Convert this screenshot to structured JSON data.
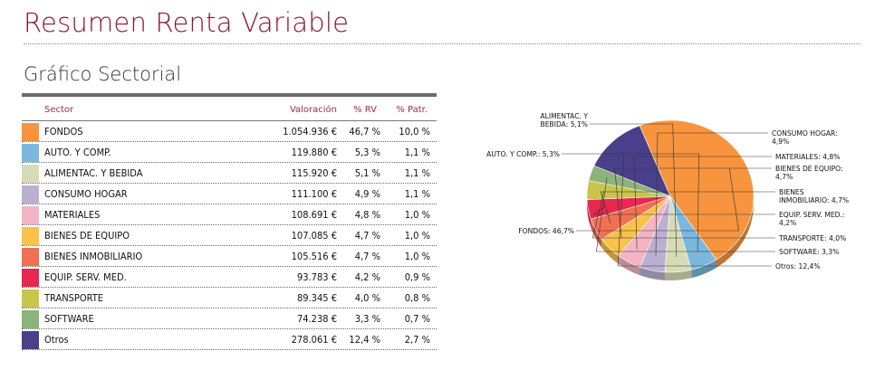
{
  "page": {
    "title": "Resumen Renta Variable",
    "subtitle": "Gráfico Sectorial"
  },
  "table": {
    "headers": {
      "sector": "Sector",
      "valoracion": "Valoración",
      "rv": "% RV",
      "patr": "% Patr."
    },
    "rows": [
      {
        "sector": "FONDOS",
        "valoracion": "1.054.936 €",
        "rv": "46,7 %",
        "patr": "10,0 %",
        "color": "#f7943d"
      },
      {
        "sector": "AUTO. Y COMP.",
        "valoracion": "119.880 €",
        "rv": "5,3 %",
        "patr": "1,1 %",
        "color": "#7bb8dd"
      },
      {
        "sector": "ALIMENTAC. Y BEBIDA",
        "valoracion": "115.920 €",
        "rv": "5,1 %",
        "patr": "1,1 %",
        "color": "#d8dcb6"
      },
      {
        "sector": "CONSUMO HOGAR",
        "valoracion": "111.100 €",
        "rv": "4,9 %",
        "patr": "1,1 %",
        "color": "#bbb0d2"
      },
      {
        "sector": "MATERIALES",
        "valoracion": "108.691 €",
        "rv": "4,8 %",
        "patr": "1,0 %",
        "color": "#f4b4c4"
      },
      {
        "sector": "BIENES DE EQUIPO",
        "valoracion": "107.085 €",
        "rv": "4,7 %",
        "patr": "1,0 %",
        "color": "#f9c24a"
      },
      {
        "sector": "BIENES INMOBILIARIO",
        "valoracion": "105.516 €",
        "rv": "4,7 %",
        "patr": "1,0 %",
        "color": "#f27052"
      },
      {
        "sector": "EQUIP. SERV. MED.",
        "valoracion": "93.783 €",
        "rv": "4,2 %",
        "patr": "0,9 %",
        "color": "#e8284e"
      },
      {
        "sector": "TRANSPORTE",
        "valoracion": "89.345 €",
        "rv": "4,0 %",
        "patr": "0,8 %",
        "color": "#c9c54a"
      },
      {
        "sector": "SOFTWARE",
        "valoracion": "74.238 €",
        "rv": "3,3 %",
        "patr": "0,7 %",
        "color": "#8cb37a"
      },
      {
        "sector": "Otros",
        "valoracion": "278.061 €",
        "rv": "12,4 %",
        "patr": "2,7 %",
        "color": "#4a3f8a"
      }
    ]
  },
  "chart_data": {
    "type": "pie",
    "labels": [
      "FONDOS",
      "AUTO. Y COMP.",
      "ALIMENTAC. Y BEBIDA",
      "CONSUMO HOGAR",
      "MATERIALES",
      "BIENES DE EQUIPO",
      "BIENES INMOBILIARIO",
      "EQUIP. SERV. MED.",
      "TRANSPORTE",
      "SOFTWARE",
      "Otros"
    ],
    "values": [
      46.7,
      5.3,
      5.1,
      4.9,
      4.8,
      4.7,
      4.7,
      4.2,
      4.0,
      3.3,
      12.4
    ],
    "colors": [
      "#f7943d",
      "#7bb8dd",
      "#d8dcb6",
      "#bbb0d2",
      "#f4b4c4",
      "#f9c24a",
      "#f27052",
      "#e8284e",
      "#c9c54a",
      "#8cb37a",
      "#4a3f8a"
    ],
    "slice_labels": [
      [
        "FONDOS: 46,7%"
      ],
      [
        "AUTO. Y COMP.: 5,3%"
      ],
      [
        "ALIMENTAC. Y",
        "BEBIDA: 5,1%"
      ],
      [
        "CONSUMO HOGAR:",
        "4,9%"
      ],
      [
        "MATERIALES: 4,8%"
      ],
      [
        "BIENES DE EQUIPO:",
        "4,7%"
      ],
      [
        "BIENES",
        "INMOBILIARIO: 4,7%"
      ],
      [
        "EQUIP. SERV. MED.:",
        "4,2%"
      ],
      [
        "TRANSPORTE: 4,0%"
      ],
      [
        "SOFTWARE: 3,3%"
      ],
      [
        "Otros: 12,4%"
      ]
    ],
    "style": "3d-tilted"
  }
}
